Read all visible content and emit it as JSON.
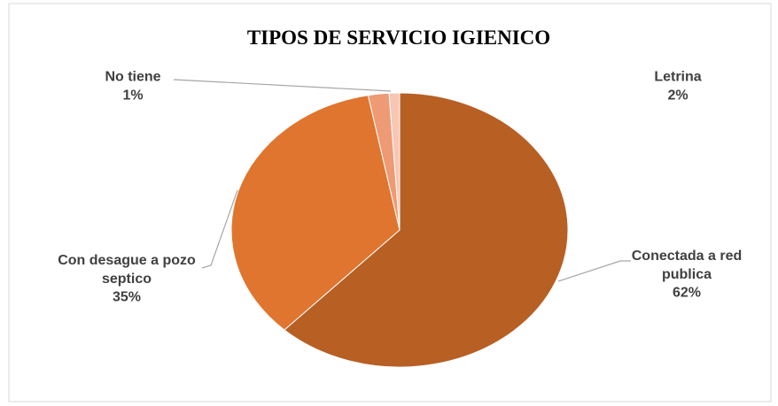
{
  "chart_data": {
    "type": "pie",
    "title": "TIPOS DE SERVICIO IGIENICO",
    "categories": [
      "Conectada a red publica",
      "Con desague a pozo septico",
      "Letrina",
      "No tiene"
    ],
    "values": [
      62,
      35,
      2,
      1
    ],
    "value_labels": [
      "62%",
      "35%",
      "2%",
      "1%"
    ],
    "colors": [
      "#b85f24",
      "#df752f",
      "#ee9a74",
      "#f7c6b4"
    ]
  }
}
